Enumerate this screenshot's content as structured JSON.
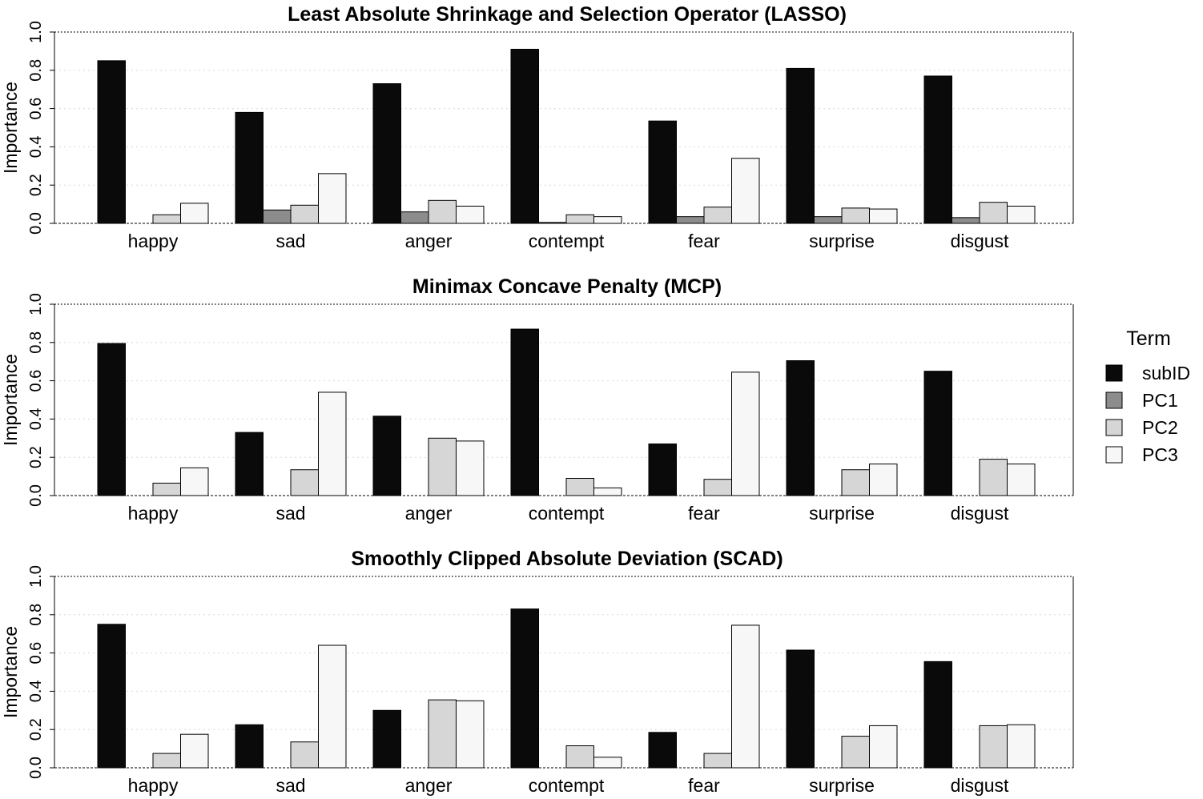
{
  "legend": {
    "title": "Term",
    "items": [
      {
        "name": "subID",
        "color": "#0a0a0a"
      },
      {
        "name": "PC1",
        "color": "#8c8c8c"
      },
      {
        "name": "PC2",
        "color": "#d6d6d6"
      },
      {
        "name": "PC3",
        "color": "#f7f7f7"
      }
    ]
  },
  "chart_data": [
    {
      "type": "bar",
      "title": "Least Absolute Shrinkage and Selection Operator (LASSO)",
      "ylabel": "Importance",
      "xlabel": "",
      "ylim": [
        0,
        1.0
      ],
      "yticks": [
        "0.0",
        "0.2",
        "0.4",
        "0.6",
        "0.8",
        "1.0"
      ],
      "grid": "horizontal dotted",
      "categories": [
        "happy",
        "sad",
        "anger",
        "contempt",
        "fear",
        "surprise",
        "disgust"
      ],
      "series": [
        {
          "name": "subID",
          "values": [
            0.85,
            0.58,
            0.73,
            0.91,
            0.535,
            0.81,
            0.77
          ]
        },
        {
          "name": "PC1",
          "values": [
            0.0,
            0.07,
            0.06,
            0.005,
            0.035,
            0.035,
            0.03
          ]
        },
        {
          "name": "PC2",
          "values": [
            0.045,
            0.095,
            0.12,
            0.045,
            0.085,
            0.08,
            0.11
          ]
        },
        {
          "name": "PC3",
          "values": [
            0.105,
            0.26,
            0.09,
            0.035,
            0.34,
            0.075,
            0.09
          ]
        }
      ]
    },
    {
      "type": "bar",
      "title": "Minimax Concave Penalty (MCP)",
      "ylabel": "Importance",
      "xlabel": "",
      "ylim": [
        0,
        1.0
      ],
      "yticks": [
        "0.0",
        "0.2",
        "0.4",
        "0.6",
        "0.8",
        "1.0"
      ],
      "grid": "horizontal dotted",
      "categories": [
        "happy",
        "sad",
        "anger",
        "contempt",
        "fear",
        "surprise",
        "disgust"
      ],
      "series": [
        {
          "name": "subID",
          "values": [
            0.795,
            0.33,
            0.415,
            0.87,
            0.27,
            0.705,
            0.65
          ]
        },
        {
          "name": "PC1",
          "values": [
            0.0,
            0.0,
            0.0,
            0.0,
            0.0,
            0.0,
            0.0
          ]
        },
        {
          "name": "PC2",
          "values": [
            0.065,
            0.135,
            0.3,
            0.09,
            0.085,
            0.135,
            0.19
          ]
        },
        {
          "name": "PC3",
          "values": [
            0.145,
            0.54,
            0.285,
            0.04,
            0.645,
            0.165,
            0.165
          ]
        }
      ]
    },
    {
      "type": "bar",
      "title": "Smoothly Clipped Absolute Deviation (SCAD)",
      "ylabel": "Importance",
      "xlabel": "",
      "ylim": [
        0,
        1.0
      ],
      "yticks": [
        "0.0",
        "0.2",
        "0.4",
        "0.6",
        "0.8",
        "1.0"
      ],
      "grid": "horizontal dotted",
      "categories": [
        "happy",
        "sad",
        "anger",
        "contempt",
        "fear",
        "surprise",
        "disgust"
      ],
      "series": [
        {
          "name": "subID",
          "values": [
            0.75,
            0.225,
            0.3,
            0.83,
            0.185,
            0.615,
            0.555
          ]
        },
        {
          "name": "PC1",
          "values": [
            0.0,
            0.0,
            0.0,
            0.0,
            0.0,
            0.0,
            0.0
          ]
        },
        {
          "name": "PC2",
          "values": [
            0.075,
            0.135,
            0.355,
            0.115,
            0.075,
            0.165,
            0.22
          ]
        },
        {
          "name": "PC3",
          "values": [
            0.175,
            0.64,
            0.35,
            0.055,
            0.745,
            0.22,
            0.225
          ]
        }
      ]
    }
  ]
}
